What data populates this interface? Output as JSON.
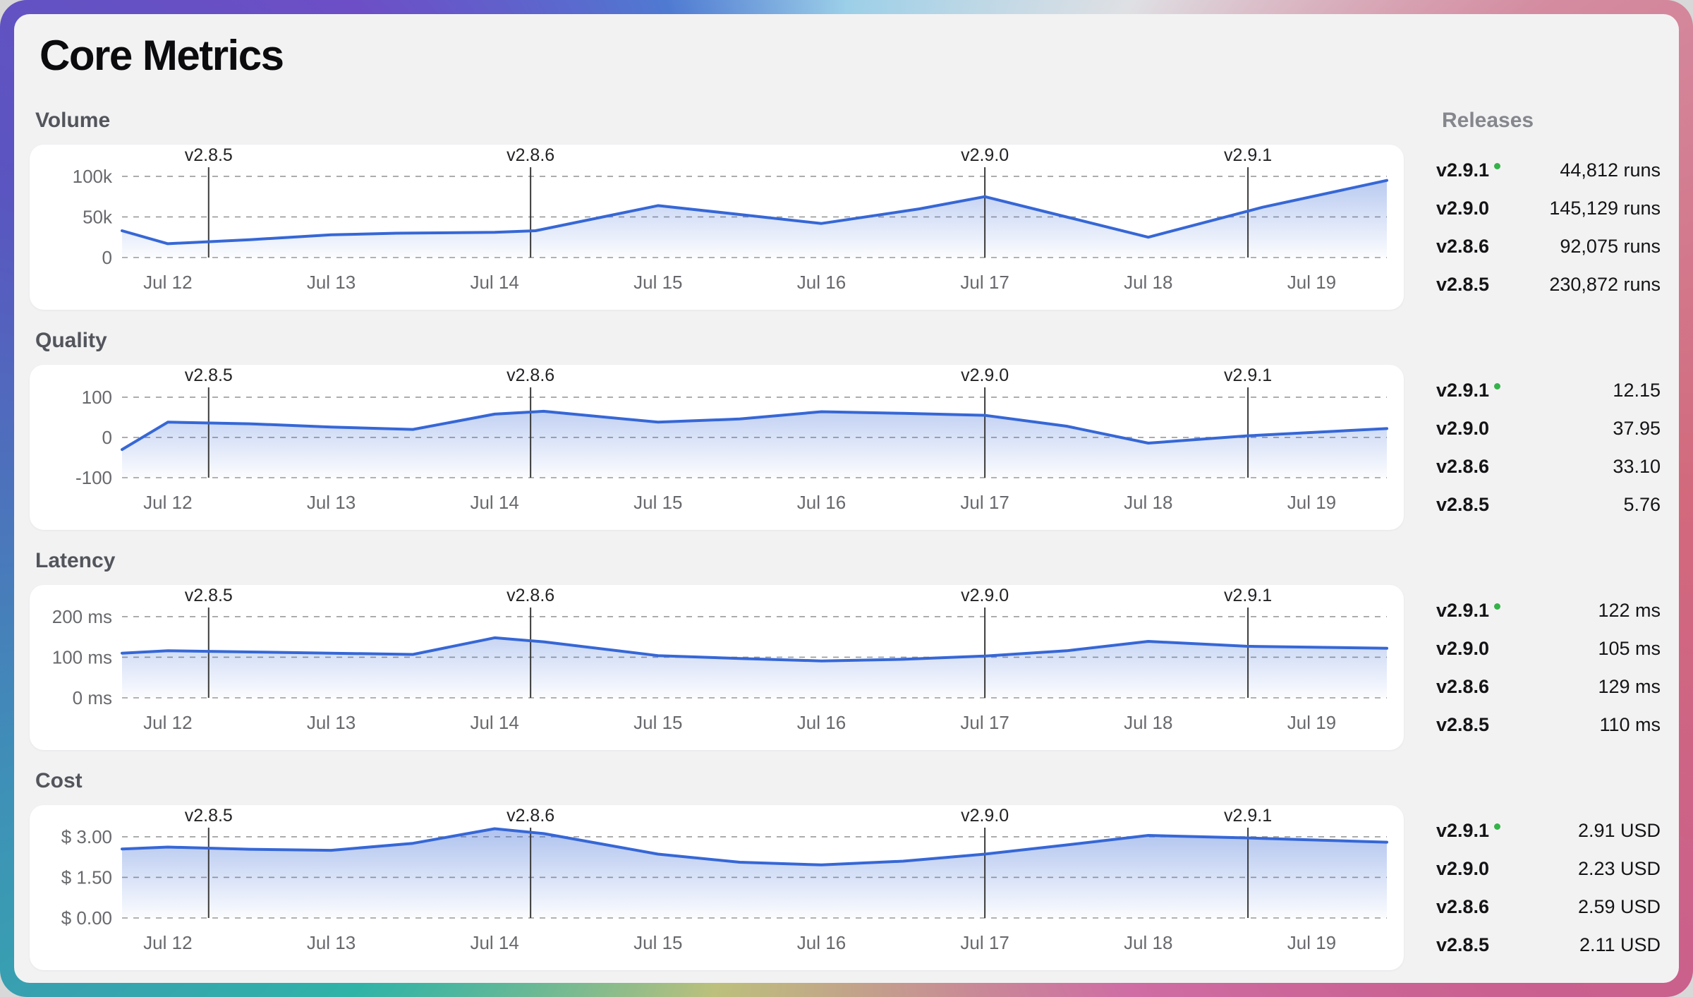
{
  "page": {
    "title": "Core Metrics"
  },
  "colors": {
    "accent_line": "#3667d6",
    "area_fill_top": "#3667d6",
    "grid": "#9a9a9a",
    "marker_line": "#3a3a3a",
    "latest_dot": "#35b24a",
    "card_bg": "#ffffff",
    "panel_bg": "#f2f2f3"
  },
  "releases": {
    "header": "Releases",
    "groups": [
      {
        "metric": "Volume",
        "items": [
          {
            "version": "v2.9.1",
            "latest": true,
            "value": "44,812 runs"
          },
          {
            "version": "v2.9.0",
            "latest": false,
            "value": "145,129 runs"
          },
          {
            "version": "v2.8.6",
            "latest": false,
            "value": "92,075 runs"
          },
          {
            "version": "v2.8.5",
            "latest": false,
            "value": "230,872 runs"
          }
        ]
      },
      {
        "metric": "Quality",
        "items": [
          {
            "version": "v2.9.1",
            "latest": true,
            "value": "12.15"
          },
          {
            "version": "v2.9.0",
            "latest": false,
            "value": "37.95"
          },
          {
            "version": "v2.8.6",
            "latest": false,
            "value": "33.10"
          },
          {
            "version": "v2.8.5",
            "latest": false,
            "value": "5.76"
          }
        ]
      },
      {
        "metric": "Latency",
        "items": [
          {
            "version": "v2.9.1",
            "latest": true,
            "value": "122 ms"
          },
          {
            "version": "v2.9.0",
            "latest": false,
            "value": "105 ms"
          },
          {
            "version": "v2.8.6",
            "latest": false,
            "value": "129 ms"
          },
          {
            "version": "v2.8.5",
            "latest": false,
            "value": "110 ms"
          }
        ]
      },
      {
        "metric": "Cost",
        "items": [
          {
            "version": "v2.9.1",
            "latest": true,
            "value": "2.91 USD"
          },
          {
            "version": "v2.9.0",
            "latest": false,
            "value": "2.23 USD"
          },
          {
            "version": "v2.8.6",
            "latest": false,
            "value": "2.59 USD"
          },
          {
            "version": "v2.8.5",
            "latest": false,
            "value": "2.11 USD"
          }
        ]
      }
    ]
  },
  "chart_data": [
    {
      "type": "line",
      "title": "Volume",
      "line_color": "#3667d6",
      "xlim": [
        11.72,
        19.46
      ],
      "ylim": [
        0,
        113000
      ],
      "grid": true,
      "yticks": [
        {
          "v": 0,
          "label": "0"
        },
        {
          "v": 50000,
          "label": "50k"
        },
        {
          "v": 100000,
          "label": "100k"
        }
      ],
      "xticks": [
        {
          "v": 12,
          "label": "Jul 12"
        },
        {
          "v": 13,
          "label": "Jul 13"
        },
        {
          "v": 14,
          "label": "Jul 14"
        },
        {
          "v": 15,
          "label": "Jul 15"
        },
        {
          "v": 16,
          "label": "Jul 16"
        },
        {
          "v": 17,
          "label": "Jul 17"
        },
        {
          "v": 18,
          "label": "Jul 18"
        },
        {
          "v": 19,
          "label": "Jul 19"
        }
      ],
      "markers": [
        {
          "x": 12.25,
          "label": "v2.8.5"
        },
        {
          "x": 14.22,
          "label": "v2.8.6"
        },
        {
          "x": 17.0,
          "label": "v2.9.0"
        },
        {
          "x": 18.61,
          "label": "v2.9.1"
        }
      ],
      "points": [
        [
          11.72,
          33000
        ],
        [
          12,
          17000
        ],
        [
          12.5,
          22000
        ],
        [
          13,
          28000
        ],
        [
          13.4,
          30000
        ],
        [
          14,
          31000
        ],
        [
          14.25,
          33000
        ],
        [
          15,
          64000
        ],
        [
          15.5,
          53000
        ],
        [
          16,
          42000
        ],
        [
          16.6,
          60000
        ],
        [
          17,
          75000
        ],
        [
          17.5,
          50000
        ],
        [
          18,
          25000
        ],
        [
          18.7,
          62000
        ],
        [
          19.46,
          95000
        ]
      ]
    },
    {
      "type": "line",
      "title": "Quality",
      "line_color": "#3667d6",
      "xlim": [
        11.72,
        19.46
      ],
      "ylim": [
        -100,
        128
      ],
      "grid": true,
      "yticks": [
        {
          "v": -100,
          "label": "-100"
        },
        {
          "v": 0,
          "label": "0"
        },
        {
          "v": 100,
          "label": "100"
        }
      ],
      "xticks": [
        {
          "v": 12,
          "label": "Jul 12"
        },
        {
          "v": 13,
          "label": "Jul 13"
        },
        {
          "v": 14,
          "label": "Jul 14"
        },
        {
          "v": 15,
          "label": "Jul 15"
        },
        {
          "v": 16,
          "label": "Jul 16"
        },
        {
          "v": 17,
          "label": "Jul 17"
        },
        {
          "v": 18,
          "label": "Jul 18"
        },
        {
          "v": 19,
          "label": "Jul 19"
        }
      ],
      "markers": [
        {
          "x": 12.25,
          "label": "v2.8.5"
        },
        {
          "x": 14.22,
          "label": "v2.8.6"
        },
        {
          "x": 17.0,
          "label": "v2.9.0"
        },
        {
          "x": 18.61,
          "label": "v2.9.1"
        }
      ],
      "points": [
        [
          11.72,
          -30
        ],
        [
          12,
          38
        ],
        [
          12.5,
          34
        ],
        [
          13,
          26
        ],
        [
          13.5,
          20
        ],
        [
          14,
          58
        ],
        [
          14.3,
          65
        ],
        [
          15,
          38
        ],
        [
          15.5,
          46
        ],
        [
          16,
          64
        ],
        [
          16.5,
          60
        ],
        [
          17,
          55
        ],
        [
          17.5,
          28
        ],
        [
          18,
          -14
        ],
        [
          18.6,
          4
        ],
        [
          19.46,
          22
        ]
      ]
    },
    {
      "type": "line",
      "title": "Latency",
      "line_color": "#3667d6",
      "xlim": [
        11.72,
        19.46
      ],
      "ylim": [
        0,
        226
      ],
      "grid": true,
      "yticks": [
        {
          "v": 0,
          "label": "0 ms"
        },
        {
          "v": 100,
          "label": "100 ms"
        },
        {
          "v": 200,
          "label": "200 ms"
        }
      ],
      "xticks": [
        {
          "v": 12,
          "label": "Jul 12"
        },
        {
          "v": 13,
          "label": "Jul 13"
        },
        {
          "v": 14,
          "label": "Jul 14"
        },
        {
          "v": 15,
          "label": "Jul 15"
        },
        {
          "v": 16,
          "label": "Jul 16"
        },
        {
          "v": 17,
          "label": "Jul 17"
        },
        {
          "v": 18,
          "label": "Jul 18"
        },
        {
          "v": 19,
          "label": "Jul 19"
        }
      ],
      "markers": [
        {
          "x": 12.25,
          "label": "v2.8.5"
        },
        {
          "x": 14.22,
          "label": "v2.8.6"
        },
        {
          "x": 17.0,
          "label": "v2.9.0"
        },
        {
          "x": 18.61,
          "label": "v2.9.1"
        }
      ],
      "points": [
        [
          11.72,
          110
        ],
        [
          12,
          116
        ],
        [
          12.5,
          113
        ],
        [
          13,
          110
        ],
        [
          13.5,
          107
        ],
        [
          14,
          148
        ],
        [
          14.3,
          138
        ],
        [
          15,
          104
        ],
        [
          15.5,
          97
        ],
        [
          16,
          91
        ],
        [
          16.5,
          95
        ],
        [
          17,
          103
        ],
        [
          17.5,
          116
        ],
        [
          18,
          139
        ],
        [
          18.6,
          127
        ],
        [
          19.46,
          122
        ]
      ]
    },
    {
      "type": "line",
      "title": "Cost",
      "line_color": "#3667d6",
      "xlim": [
        11.72,
        19.46
      ],
      "ylim": [
        0,
        3.39
      ],
      "grid": true,
      "yticks": [
        {
          "v": 0,
          "label": "$ 0.00"
        },
        {
          "v": 1.5,
          "label": "$ 1.50"
        },
        {
          "v": 3,
          "label": "$ 3.00"
        }
      ],
      "xticks": [
        {
          "v": 12,
          "label": "Jul 12"
        },
        {
          "v": 13,
          "label": "Jul 13"
        },
        {
          "v": 14,
          "label": "Jul 14"
        },
        {
          "v": 15,
          "label": "Jul 15"
        },
        {
          "v": 16,
          "label": "Jul 16"
        },
        {
          "v": 17,
          "label": "Jul 17"
        },
        {
          "v": 18,
          "label": "Jul 18"
        },
        {
          "v": 19,
          "label": "Jul 19"
        }
      ],
      "markers": [
        {
          "x": 12.25,
          "label": "v2.8.5"
        },
        {
          "x": 14.22,
          "label": "v2.8.6"
        },
        {
          "x": 17.0,
          "label": "v2.9.0"
        },
        {
          "x": 18.61,
          "label": "v2.9.1"
        }
      ],
      "points": [
        [
          11.72,
          2.55
        ],
        [
          12,
          2.62
        ],
        [
          12.5,
          2.54
        ],
        [
          13,
          2.5
        ],
        [
          13.5,
          2.76
        ],
        [
          14,
          3.3
        ],
        [
          14.3,
          3.12
        ],
        [
          15,
          2.36
        ],
        [
          15.5,
          2.06
        ],
        [
          16,
          1.96
        ],
        [
          16.5,
          2.1
        ],
        [
          17,
          2.36
        ],
        [
          17.5,
          2.7
        ],
        [
          18,
          3.05
        ],
        [
          18.6,
          2.96
        ],
        [
          19.46,
          2.8
        ]
      ]
    }
  ]
}
